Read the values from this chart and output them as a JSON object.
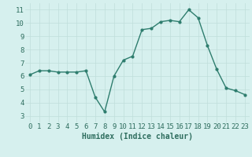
{
  "x": [
    0,
    1,
    2,
    3,
    4,
    5,
    6,
    7,
    8,
    9,
    10,
    11,
    12,
    13,
    14,
    15,
    16,
    17,
    18,
    19,
    20,
    21,
    22,
    23
  ],
  "y": [
    6.1,
    6.4,
    6.4,
    6.3,
    6.3,
    6.3,
    6.4,
    4.4,
    3.3,
    6.0,
    7.2,
    7.5,
    9.5,
    9.6,
    10.1,
    10.2,
    10.1,
    11.0,
    10.4,
    8.3,
    6.5,
    5.1,
    4.9,
    4.6
  ],
  "line_color": "#2e7d6e",
  "marker": "o",
  "marker_size": 2,
  "linewidth": 1.0,
  "xlabel": "Humidex (Indice chaleur)",
  "xlim": [
    -0.5,
    23.5
  ],
  "ylim": [
    2.5,
    11.5
  ],
  "yticks": [
    3,
    4,
    5,
    6,
    7,
    8,
    9,
    10,
    11
  ],
  "xticks": [
    0,
    1,
    2,
    3,
    4,
    5,
    6,
    7,
    8,
    9,
    10,
    11,
    12,
    13,
    14,
    15,
    16,
    17,
    18,
    19,
    20,
    21,
    22,
    23
  ],
  "xtick_labels": [
    "0",
    "1",
    "2",
    "3",
    "4",
    "5",
    "6",
    "7",
    "8",
    "9",
    "10",
    "11",
    "12",
    "13",
    "14",
    "15",
    "16",
    "17",
    "18",
    "19",
    "20",
    "21",
    "22",
    "23"
  ],
  "bg_color": "#d6f0ee",
  "grid_color": "#c0deda",
  "xlabel_fontsize": 7,
  "tick_fontsize": 6.5,
  "tick_color": "#2e6d5e"
}
